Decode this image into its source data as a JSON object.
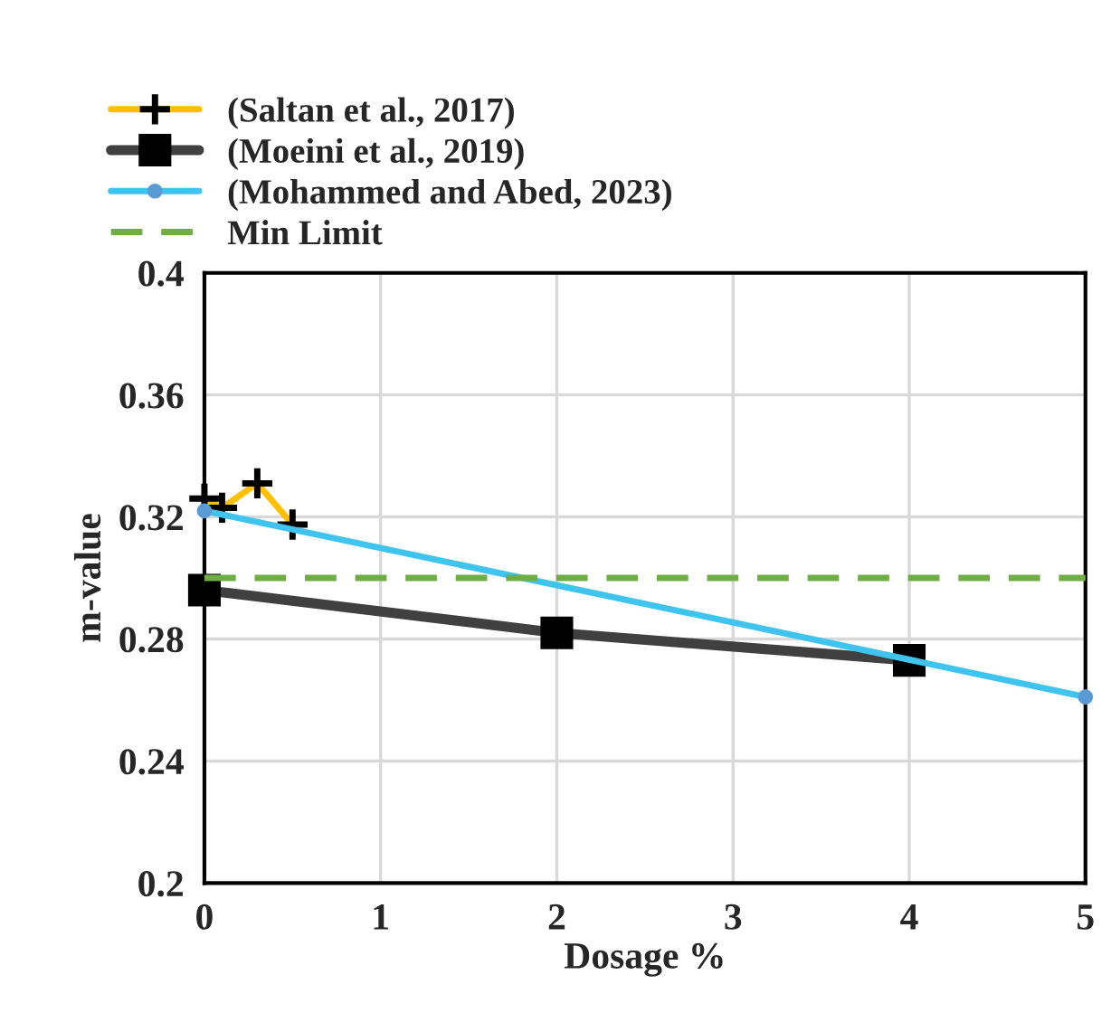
{
  "chart_data": {
    "type": "line",
    "xlabel": "Dosage %",
    "ylabel": "m-value",
    "xlim": [
      0,
      5
    ],
    "xticks": [
      0,
      1,
      2,
      3,
      4,
      5
    ],
    "ylim": [
      0.2,
      0.4
    ],
    "yticks": [
      0.2,
      0.24,
      0.28,
      0.32,
      0.36,
      0.4
    ],
    "grid": true,
    "legend": "top left",
    "series": [
      {
        "name": "(Saltan et al., 2017)",
        "color": "#ffc000",
        "marker": "cross",
        "x": [
          0,
          0.1,
          0.3,
          0.5
        ],
        "values": [
          0.326,
          0.323,
          0.331,
          0.3175
        ]
      },
      {
        "name": "(Moeini et al., 2019)",
        "color": "#404040",
        "marker": "square",
        "x": [
          0,
          2,
          4
        ],
        "values": [
          0.296,
          0.282,
          0.273
        ]
      },
      {
        "name": "(Mohammed and Abed, 2023)",
        "color": "#3fc4f0",
        "marker": "circle",
        "x": [
          0,
          5
        ],
        "values": [
          0.322,
          0.261
        ]
      },
      {
        "name": "Min Limit",
        "color": "#70ad47",
        "marker": "none",
        "line_style": "dashed",
        "x": [
          0,
          5
        ],
        "values": [
          0.3,
          0.3
        ]
      }
    ]
  }
}
